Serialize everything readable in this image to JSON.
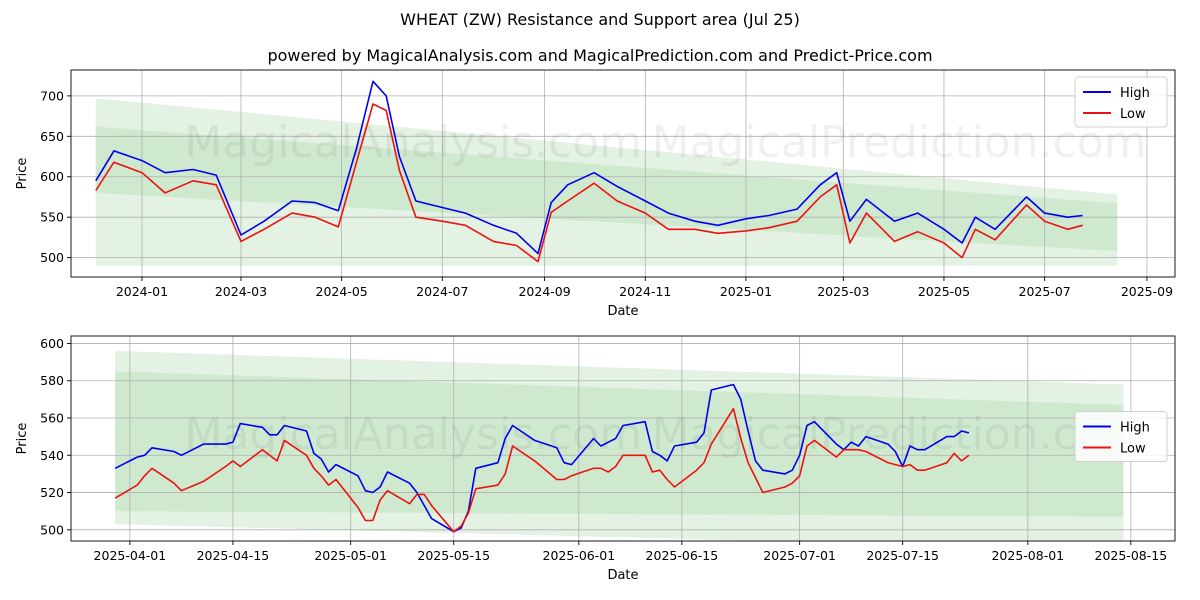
{
  "title": "WHEAT (ZW) Resistance and Support area (Jul 25)",
  "subtitle": "powered by MagicalAnalysis.com and MagicalPrediction.com and Predict-Price.com",
  "watermarks": [
    "MagicalAnalysis.com",
    "MagicalPrediction.com"
  ],
  "colors": {
    "high": "#0000ee",
    "low": "#ee1111",
    "band_outer": "#e3f2e3",
    "band_inner": "#c8e6c8",
    "grid": "#b0b0b0"
  },
  "chart_data": [
    {
      "type": "line",
      "xlabel": "Date",
      "ylabel": "Price",
      "xlim": [
        "2023-11-19",
        "2025-09-18"
      ],
      "ylim": [
        476,
        732
      ],
      "grid": true,
      "legend_position": "top-right",
      "x_ticks": [
        "2024-01-01",
        "2024-03-01",
        "2024-05-01",
        "2024-07-01",
        "2024-09-01",
        "2024-11-01",
        "2025-01-01",
        "2025-03-01",
        "2025-05-01",
        "2025-07-01",
        "2025-09-01"
      ],
      "x_tick_labels": [
        "2024-01",
        "2024-03",
        "2024-05",
        "2024-07",
        "2024-09",
        "2024-11",
        "2025-01",
        "2025-03",
        "2025-05",
        "2025-07",
        "2025-09"
      ],
      "y_ticks": [
        500,
        550,
        600,
        650,
        700
      ],
      "bands": [
        {
          "kind": "outer",
          "x": [
            "2023-12-04",
            "2025-08-14"
          ],
          "upper": [
            697,
            578
          ],
          "lower": [
            490,
            490
          ]
        },
        {
          "kind": "inner",
          "x": [
            "2023-12-04",
            "2025-08-14"
          ],
          "upper": [
            662,
            567
          ],
          "lower": [
            580,
            508
          ]
        }
      ],
      "x": [
        "2023-12-04",
        "2023-12-15",
        "2024-01-01",
        "2024-01-15",
        "2024-02-01",
        "2024-02-15",
        "2024-03-01",
        "2024-03-15",
        "2024-04-01",
        "2024-04-15",
        "2024-04-29",
        "2024-05-10",
        "2024-05-20",
        "2024-05-28",
        "2024-06-05",
        "2024-06-15",
        "2024-07-01",
        "2024-07-15",
        "2024-08-01",
        "2024-08-15",
        "2024-08-28",
        "2024-09-05",
        "2024-09-15",
        "2024-10-01",
        "2024-10-15",
        "2024-11-01",
        "2024-11-15",
        "2024-12-01",
        "2024-12-15",
        "2025-01-01",
        "2025-01-15",
        "2025-02-01",
        "2025-02-15",
        "2025-02-25",
        "2025-03-05",
        "2025-03-15",
        "2025-04-01",
        "2025-04-15",
        "2025-05-01",
        "2025-05-12",
        "2025-05-20",
        "2025-06-01",
        "2025-06-20",
        "2025-07-01",
        "2025-07-15",
        "2025-07-24"
      ],
      "series": [
        {
          "name": "High",
          "values": [
            595,
            632,
            620,
            605,
            609,
            602,
            528,
            545,
            570,
            568,
            558,
            635,
            718,
            700,
            625,
            570,
            562,
            555,
            540,
            530,
            505,
            568,
            590,
            605,
            588,
            570,
            555,
            545,
            540,
            548,
            552,
            560,
            590,
            605,
            545,
            572,
            545,
            555,
            535,
            518,
            550,
            535,
            575,
            555,
            550,
            552
          ]
        },
        {
          "name": "Low",
          "values": [
            583,
            618,
            605,
            580,
            595,
            590,
            520,
            535,
            555,
            550,
            538,
            618,
            690,
            682,
            608,
            550,
            545,
            540,
            520,
            515,
            495,
            556,
            570,
            592,
            570,
            555,
            535,
            535,
            530,
            533,
            537,
            545,
            575,
            590,
            518,
            555,
            520,
            532,
            518,
            500,
            535,
            522,
            565,
            545,
            535,
            540
          ]
        }
      ]
    },
    {
      "type": "line",
      "xlabel": "Date",
      "ylabel": "Price",
      "xlim": [
        "2025-03-24",
        "2025-08-21"
      ],
      "ylim": [
        494,
        604
      ],
      "grid": true,
      "legend_position": "center-right",
      "x_ticks": [
        "2025-04-01",
        "2025-04-15",
        "2025-05-01",
        "2025-05-15",
        "2025-06-01",
        "2025-06-15",
        "2025-07-01",
        "2025-07-15",
        "2025-08-01",
        "2025-08-15"
      ],
      "x_tick_labels": [
        "2025-04-01",
        "2025-04-15",
        "2025-05-01",
        "2025-05-15",
        "2025-06-01",
        "2025-06-15",
        "2025-07-01",
        "2025-07-15",
        "2025-08-01",
        "2025-08-15"
      ],
      "y_ticks": [
        500,
        520,
        540,
        560,
        580,
        600
      ],
      "bands": [
        {
          "kind": "outer",
          "x": [
            "2025-03-30",
            "2025-08-14"
          ],
          "upper": [
            596,
            578
          ],
          "lower": [
            503,
            489
          ]
        },
        {
          "kind": "inner",
          "x": [
            "2025-03-30",
            "2025-08-14"
          ],
          "upper": [
            585,
            567
          ],
          "lower": [
            510,
            507
          ]
        }
      ],
      "x": [
        "2025-03-30",
        "2025-03-31",
        "2025-04-01",
        "2025-04-02",
        "2025-04-03",
        "2025-04-04",
        "2025-04-05",
        "2025-04-06",
        "2025-04-07",
        "2025-04-08",
        "2025-04-09",
        "2025-04-10",
        "2025-04-11",
        "2025-04-12",
        "2025-04-13",
        "2025-04-14",
        "2025-04-15",
        "2025-04-16",
        "2025-04-17",
        "2025-04-18",
        "2025-04-19",
        "2025-04-20",
        "2025-04-21",
        "2025-04-22",
        "2025-04-23",
        "2025-04-24",
        "2025-04-25",
        "2025-04-26",
        "2025-04-27",
        "2025-04-28",
        "2025-04-29",
        "2025-04-30",
        "2025-05-01",
        "2025-05-02",
        "2025-05-03",
        "2025-05-04",
        "2025-05-05",
        "2025-05-06",
        "2025-05-07",
        "2025-05-08",
        "2025-05-09",
        "2025-05-10",
        "2025-05-11",
        "2025-05-12",
        "2025-05-13",
        "2025-05-14",
        "2025-05-15",
        "2025-05-16",
        "2025-05-17",
        "2025-05-18",
        "2025-05-19",
        "2025-05-20",
        "2025-05-21",
        "2025-05-22",
        "2025-05-23",
        "2025-05-24",
        "2025-05-25",
        "2025-05-26",
        "2025-05-27",
        "2025-05-28",
        "2025-05-29",
        "2025-05-30",
        "2025-05-31",
        "2025-06-01",
        "2025-06-02",
        "2025-06-03",
        "2025-06-04",
        "2025-06-05",
        "2025-06-06",
        "2025-06-07",
        "2025-06-08",
        "2025-06-09",
        "2025-06-10",
        "2025-06-11",
        "2025-06-12",
        "2025-06-13",
        "2025-06-14",
        "2025-06-15",
        "2025-06-16",
        "2025-06-17",
        "2025-06-18",
        "2025-06-19",
        "2025-06-20",
        "2025-06-21",
        "2025-06-22",
        "2025-06-23",
        "2025-06-24",
        "2025-06-25",
        "2025-06-26",
        "2025-06-27",
        "2025-06-28",
        "2025-06-29",
        "2025-06-30",
        "2025-07-01",
        "2025-07-02",
        "2025-07-03",
        "2025-07-04",
        "2025-07-05",
        "2025-07-06",
        "2025-07-07",
        "2025-07-08",
        "2025-07-09",
        "2025-07-10",
        "2025-07-11",
        "2025-07-12",
        "2025-07-13",
        "2025-07-14",
        "2025-07-15",
        "2025-07-16",
        "2025-07-17",
        "2025-07-18",
        "2025-07-19",
        "2025-07-20",
        "2025-07-21",
        "2025-07-22",
        "2025-07-23",
        "2025-07-24"
      ],
      "series": [
        {
          "name": "High",
          "values": [
            533,
            null,
            null,
            539,
            540,
            544,
            null,
            null,
            542,
            540,
            null,
            null,
            546,
            null,
            null,
            546,
            547,
            557,
            null,
            null,
            555,
            551,
            551,
            556,
            null,
            null,
            553,
            541,
            538,
            531,
            535,
            null,
            null,
            529,
            521,
            520,
            523,
            531,
            null,
            null,
            525,
            520,
            513,
            506,
            null,
            null,
            499,
            501,
            510,
            533,
            null,
            null,
            536,
            549,
            556,
            null,
            null,
            548,
            null,
            null,
            544,
            536,
            535,
            null,
            null,
            549,
            545,
            547,
            549,
            556,
            null,
            null,
            558,
            542,
            540,
            537,
            545,
            null,
            null,
            547,
            552,
            575,
            null,
            null,
            578,
            570,
            553,
            537,
            532,
            null,
            null,
            530,
            532,
            540,
            556,
            558,
            null,
            null,
            546,
            543,
            547,
            545,
            550,
            null,
            null,
            546,
            542,
            534,
            545,
            543,
            543,
            null,
            null,
            550,
            550,
            553,
            552
          ]
        },
        {
          "name": "Low",
          "values": [
            517,
            null,
            null,
            524,
            529,
            533,
            null,
            null,
            525,
            521,
            null,
            null,
            526,
            null,
            null,
            534,
            537,
            534,
            null,
            null,
            543,
            540,
            537,
            548,
            null,
            null,
            540,
            533,
            529,
            524,
            527,
            null,
            null,
            512,
            505,
            505,
            516,
            521,
            null,
            null,
            514,
            519,
            519,
            513,
            null,
            null,
            499,
            502,
            509,
            522,
            null,
            null,
            524,
            530,
            545,
            null,
            null,
            537,
            null,
            null,
            527,
            527,
            529,
            null,
            null,
            533,
            533,
            531,
            534,
            540,
            null,
            null,
            540,
            531,
            532,
            527,
            523,
            null,
            null,
            532,
            536,
            546,
            null,
            null,
            565,
            549,
            536,
            528,
            520,
            null,
            null,
            523,
            525,
            529,
            545,
            548,
            null,
            null,
            539,
            543,
            543,
            543,
            542,
            null,
            null,
            536,
            535,
            534,
            535,
            532,
            532,
            null,
            null,
            536,
            541,
            537,
            540
          ]
        }
      ]
    }
  ]
}
